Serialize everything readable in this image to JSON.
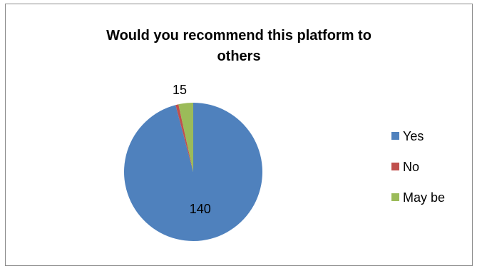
{
  "chart_data": {
    "type": "pie",
    "title_lines": [
      "Would you recommend this platform to",
      "others"
    ],
    "slices": [
      {
        "name": "Yes",
        "value": 140,
        "color": "#4f81bd",
        "label": "140"
      },
      {
        "name": "No",
        "value": 1,
        "color": "#c0504d",
        "label": ""
      },
      {
        "name": "May be",
        "value": 5,
        "color": "#9bbb59",
        "label": ""
      }
    ],
    "extra_label": "15",
    "legend": {
      "placement": "right"
    }
  }
}
